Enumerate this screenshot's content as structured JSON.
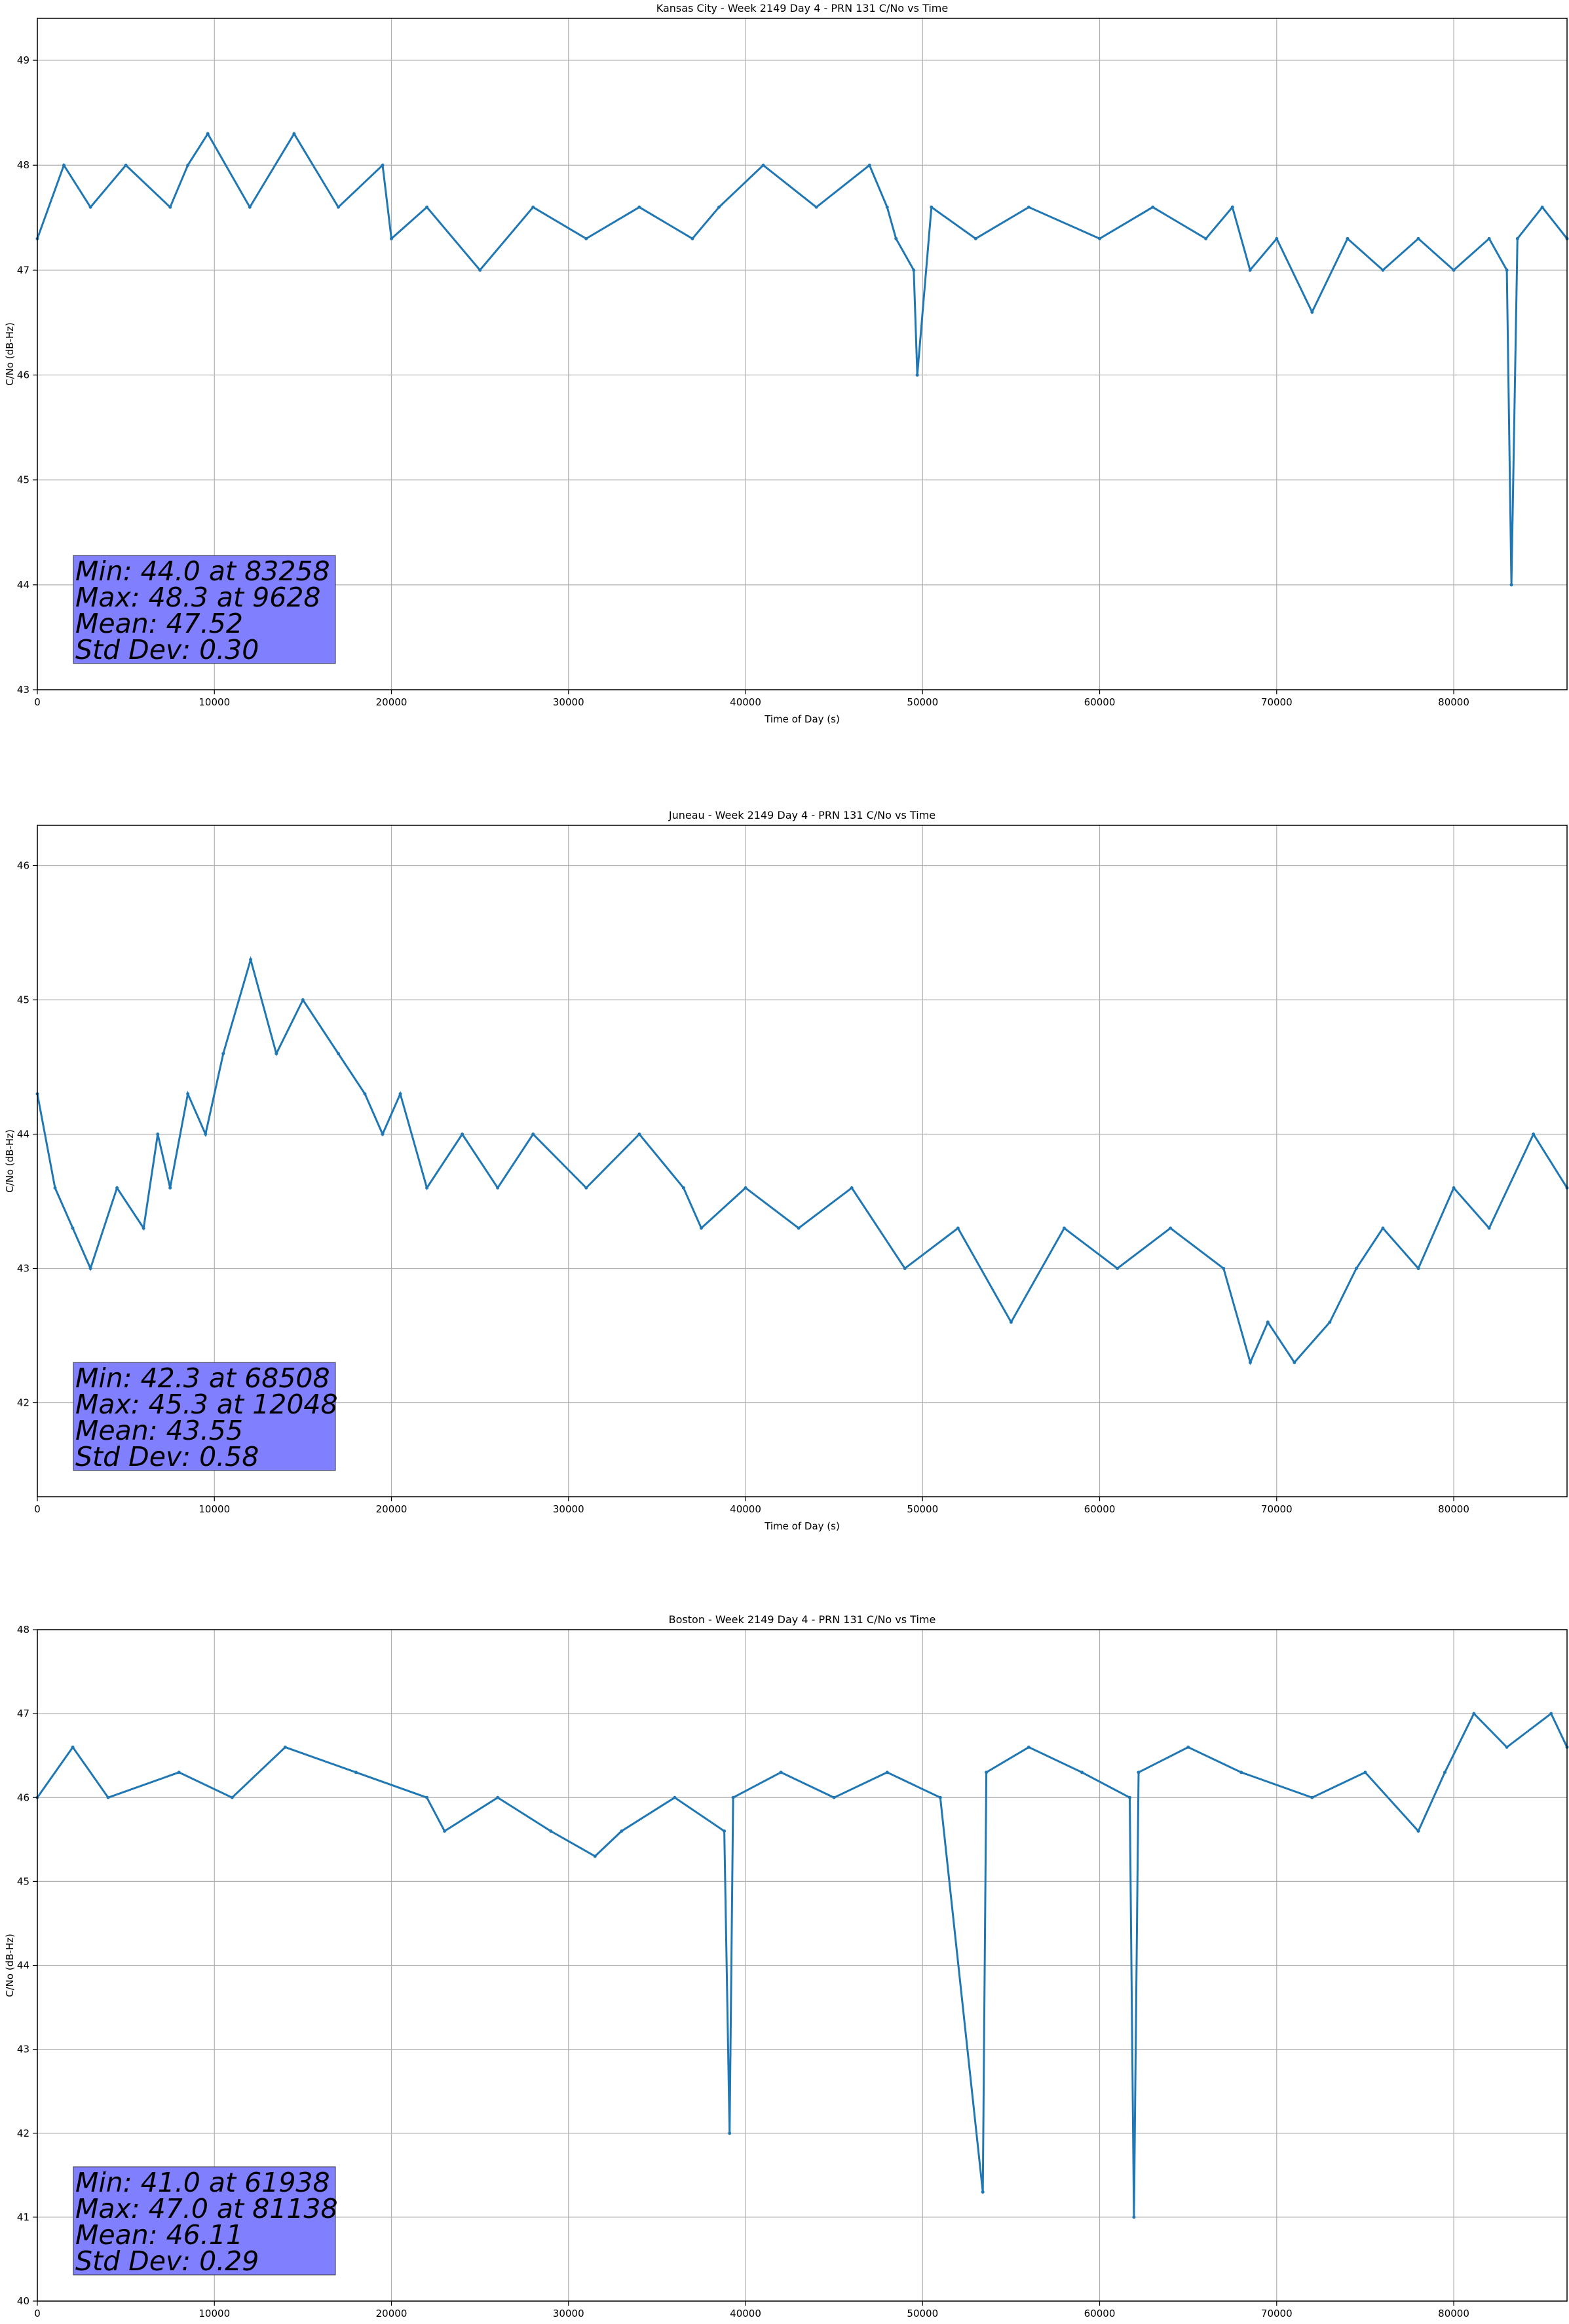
{
  "chart_data": [
    {
      "type": "line",
      "title": "Kansas City - Week 2149 Day 4 - PRN 131 C/No vs Time",
      "xlabel": "Time of Day (s)",
      "ylabel": "C/No (dB-Hz)",
      "xlim": [
        0,
        86400
      ],
      "ylim": [
        43,
        49.4
      ],
      "xticks": [
        0,
        10000,
        20000,
        30000,
        40000,
        50000,
        60000,
        70000,
        80000
      ],
      "yticks": [
        43,
        44,
        45,
        46,
        47,
        48,
        49
      ],
      "grid": true,
      "series_color": "#1f77b4",
      "series": [
        {
          "x": [
            0,
            1500,
            3000,
            5000,
            7500,
            8500,
            9628,
            12000,
            14500,
            17000,
            19500,
            20000,
            22000,
            25000,
            28000,
            31000,
            34000,
            37000,
            38500,
            41000,
            44000,
            47000,
            48000,
            48500,
            49500,
            49700,
            50500,
            53000,
            56000,
            60000,
            63000,
            66000,
            67500,
            68500,
            70000,
            72000,
            74000,
            76000,
            78000,
            80000,
            82000,
            83000,
            83258,
            83600,
            85000,
            86400
          ],
          "y": [
            47.3,
            48.0,
            47.6,
            48.0,
            47.6,
            48.0,
            48.3,
            47.6,
            48.3,
            47.6,
            48.0,
            47.3,
            47.6,
            47.0,
            47.6,
            47.3,
            47.6,
            47.3,
            47.6,
            48.0,
            47.6,
            48.0,
            47.6,
            47.3,
            47.0,
            46.0,
            47.6,
            47.3,
            47.6,
            47.3,
            47.6,
            47.3,
            47.6,
            47.0,
            47.3,
            46.6,
            47.3,
            47.0,
            47.3,
            47.0,
            47.3,
            47.0,
            44.0,
            47.3,
            47.6,
            47.3
          ]
        }
      ],
      "stats": [
        "Min: 44.0 at 83258",
        "Max: 48.3 at 9628",
        "Mean: 47.52",
        "Std Dev: 0.30"
      ]
    },
    {
      "type": "line",
      "title": "Juneau - Week 2149 Day 4 - PRN 131 C/No vs Time",
      "xlabel": "Time of Day (s)",
      "ylabel": "C/No (dB-Hz)",
      "xlim": [
        0,
        86400
      ],
      "ylim": [
        41.3,
        46.3
      ],
      "xticks": [
        0,
        10000,
        20000,
        30000,
        40000,
        50000,
        60000,
        70000,
        80000
      ],
      "yticks": [
        42,
        43,
        44,
        45,
        46
      ],
      "grid": true,
      "series_color": "#1f77b4",
      "series": [
        {
          "x": [
            0,
            1000,
            2000,
            3000,
            4500,
            6000,
            6800,
            7500,
            8500,
            9500,
            10500,
            12048,
            13500,
            15000,
            17000,
            18500,
            19500,
            20500,
            22000,
            24000,
            26000,
            28000,
            31000,
            34000,
            36500,
            37500,
            40000,
            43000,
            46000,
            49000,
            52000,
            55000,
            58000,
            61000,
            64000,
            67000,
            68508,
            69500,
            71000,
            73000,
            74500,
            76000,
            78000,
            80000,
            82000,
            84500,
            86400
          ],
          "y": [
            44.3,
            43.6,
            43.3,
            43.0,
            43.6,
            43.3,
            44.0,
            43.6,
            44.3,
            44.0,
            44.6,
            45.3,
            44.6,
            45.0,
            44.6,
            44.3,
            44.0,
            44.3,
            43.6,
            44.0,
            43.6,
            44.0,
            43.6,
            44.0,
            43.6,
            43.3,
            43.6,
            43.3,
            43.6,
            43.0,
            43.3,
            42.6,
            43.3,
            43.0,
            43.3,
            43.0,
            42.3,
            42.6,
            42.3,
            42.6,
            43.0,
            43.3,
            43.0,
            43.6,
            43.3,
            44.0,
            43.6
          ]
        }
      ],
      "stats": [
        "Min: 42.3 at 68508",
        "Max: 45.3 at 12048",
        "Mean: 43.55",
        "Std Dev: 0.58"
      ]
    },
    {
      "type": "line",
      "title": "Boston - Week 2149 Day 4 - PRN 131 C/No vs Time",
      "xlabel": "Time of Day (s)",
      "ylabel": "C/No (dB-Hz)",
      "xlim": [
        0,
        86400
      ],
      "ylim": [
        40,
        48
      ],
      "xticks": [
        0,
        10000,
        20000,
        30000,
        40000,
        50000,
        60000,
        70000,
        80000
      ],
      "yticks": [
        40,
        41,
        42,
        43,
        44,
        45,
        46,
        47,
        48
      ],
      "grid": true,
      "series_color": "#1f77b4",
      "series": [
        {
          "x": [
            0,
            2000,
            4000,
            8000,
            11000,
            14000,
            18000,
            22000,
            23000,
            26000,
            29000,
            31500,
            33000,
            36000,
            38800,
            39100,
            39300,
            42000,
            45000,
            48000,
            51000,
            53400,
            53600,
            56000,
            59000,
            61700,
            61938,
            62200,
            65000,
            68000,
            72000,
            75000,
            78000,
            79500,
            81138,
            83000,
            85500,
            86400
          ],
          "y": [
            46.0,
            46.6,
            46.0,
            46.3,
            46.0,
            46.6,
            46.3,
            46.0,
            45.6,
            46.0,
            45.6,
            45.3,
            45.6,
            46.0,
            45.6,
            42.0,
            46.0,
            46.3,
            46.0,
            46.3,
            46.0,
            41.3,
            46.3,
            46.6,
            46.3,
            46.0,
            41.0,
            46.3,
            46.6,
            46.3,
            46.0,
            46.3,
            45.6,
            46.3,
            47.0,
            46.6,
            47.0,
            46.6
          ]
        }
      ],
      "stats": [
        "Min: 41.0 at 61938",
        "Max: 47.0 at 81138",
        "Mean: 46.11",
        "Std Dev: 0.29"
      ]
    }
  ]
}
